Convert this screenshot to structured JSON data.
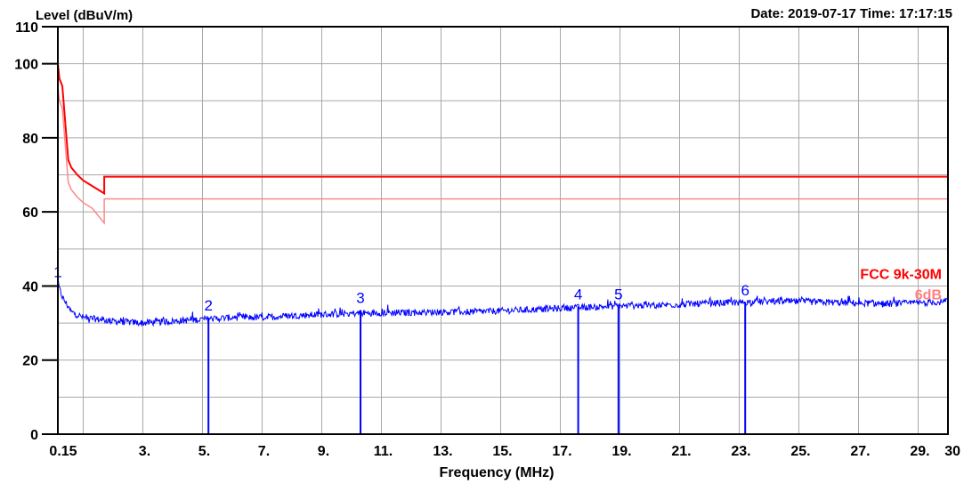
{
  "header": {
    "date_time": "Date: 2019-07-17  Time: 17:17:15"
  },
  "chart_data": {
    "type": "line",
    "ylabel": "Level (dBuV/m)",
    "xlabel": "Frequency (MHz)",
    "ylim": [
      0,
      110
    ],
    "xlim": [
      0.15,
      30
    ],
    "grid": true,
    "y_ticks": [
      {
        "value": 0,
        "label": "0"
      },
      {
        "value": 20,
        "label": "20"
      },
      {
        "value": 40,
        "label": "40"
      },
      {
        "value": 60,
        "label": "60"
      },
      {
        "value": 80,
        "label": "80"
      },
      {
        "value": 100,
        "label": "100"
      },
      {
        "value": 110,
        "label": "110"
      }
    ],
    "x_ticks": [
      {
        "value": 0.15,
        "label": "0.15"
      },
      {
        "value": 3,
        "label": "3."
      },
      {
        "value": 5,
        "label": "5."
      },
      {
        "value": 7,
        "label": "7."
      },
      {
        "value": 9,
        "label": "9."
      },
      {
        "value": 11,
        "label": "11."
      },
      {
        "value": 13,
        "label": "13."
      },
      {
        "value": 15,
        "label": "15."
      },
      {
        "value": 17,
        "label": "17."
      },
      {
        "value": 19,
        "label": "19."
      },
      {
        "value": 21,
        "label": "21."
      },
      {
        "value": 23,
        "label": "23."
      },
      {
        "value": 25,
        "label": "25."
      },
      {
        "value": 27,
        "label": "27."
      },
      {
        "value": 29,
        "label": "29."
      },
      {
        "value": 30,
        "label": "30"
      }
    ],
    "x_gridlines": [
      1,
      3,
      5,
      7,
      9,
      11,
      13,
      15,
      17,
      19,
      21,
      23,
      25,
      27,
      29
    ],
    "limits": [
      {
        "label": "FCC 9k-30M",
        "color": "#ff0000",
        "points": [
          [
            0.15,
            110
          ],
          [
            0.15,
            100
          ],
          [
            0.2,
            96
          ],
          [
            0.3,
            94
          ],
          [
            0.5,
            74
          ],
          [
            0.6,
            72
          ],
          [
            0.8,
            70
          ],
          [
            1.0,
            68.5
          ],
          [
            1.3,
            67
          ],
          [
            1.705,
            65
          ],
          [
            1.705,
            69.5
          ],
          [
            30,
            69.5
          ],
          [
            30,
            40
          ]
        ]
      },
      {
        "label": "6dB",
        "color": "#ff8080",
        "points": [
          [
            0.15,
            110
          ],
          [
            0.15,
            94
          ],
          [
            0.2,
            90
          ],
          [
            0.3,
            88
          ],
          [
            0.5,
            68
          ],
          [
            0.6,
            66
          ],
          [
            0.8,
            64
          ],
          [
            1.0,
            62.5
          ],
          [
            1.3,
            61
          ],
          [
            1.705,
            57
          ],
          [
            1.705,
            63.5
          ],
          [
            30,
            63.5
          ]
        ]
      }
    ],
    "trace": {
      "color": "#0000ff",
      "points": [
        [
          0.15,
          40.5
        ],
        [
          0.3,
          37
        ],
        [
          0.6,
          33
        ],
        [
          1,
          31.5
        ],
        [
          2,
          30.5
        ],
        [
          3,
          30
        ],
        [
          4,
          30.5
        ],
        [
          5,
          31
        ],
        [
          6,
          31.5
        ],
        [
          7,
          31.5
        ],
        [
          8,
          32
        ],
        [
          9,
          32.3
        ],
        [
          10,
          32.6
        ],
        [
          11,
          32.8
        ],
        [
          12,
          32.8
        ],
        [
          13,
          33
        ],
        [
          14,
          33
        ],
        [
          15,
          33.3
        ],
        [
          16,
          33.6
        ],
        [
          17,
          34
        ],
        [
          18,
          34.3
        ],
        [
          19,
          34.6
        ],
        [
          20,
          34.8
        ],
        [
          21,
          35
        ],
        [
          22,
          35.3
        ],
        [
          23,
          35.6
        ],
        [
          24,
          35.8
        ],
        [
          25,
          35.8
        ],
        [
          26,
          35.6
        ],
        [
          27,
          35.4
        ],
        [
          28,
          35.2
        ],
        [
          29,
          35.4
        ],
        [
          30,
          35.8
        ]
      ]
    },
    "markers": [
      {
        "label": "1",
        "x": 0.15,
        "y": 40.5
      },
      {
        "label": "2",
        "x": 5.2,
        "y": 31.5
      },
      {
        "label": "3",
        "x": 10.3,
        "y": 33.5
      },
      {
        "label": "4",
        "x": 17.6,
        "y": 34.5
      },
      {
        "label": "5",
        "x": 18.95,
        "y": 34.5
      },
      {
        "label": "6",
        "x": 23.2,
        "y": 35.5
      }
    ]
  }
}
